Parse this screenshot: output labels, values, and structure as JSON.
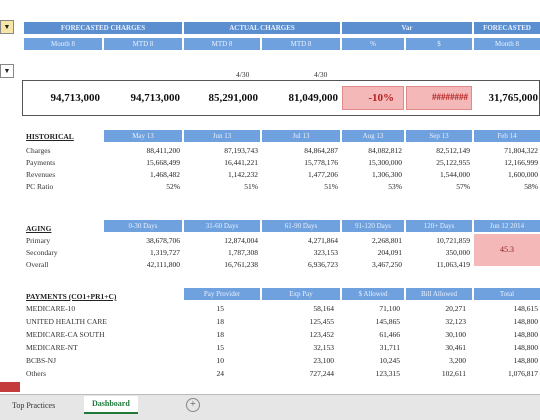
{
  "top": {
    "groups": [
      "FORECASTED CHARGES",
      "ACTUAL CHARGES",
      "Var",
      "FORECASTED"
    ],
    "subheaders": [
      "Month 8",
      "MTD 8",
      "MTD 8",
      "MTD 8",
      "%",
      "$",
      "Month 8"
    ],
    "dates": [
      "4/30",
      "4/30"
    ],
    "values": [
      "94,713,000",
      "94,713,000",
      "85,291,000",
      "81,049,000",
      "-10%",
      "########",
      "31,765,000"
    ]
  },
  "historical": {
    "title": "HISTORICAL",
    "headers": [
      "May 13",
      "Jun 13",
      "Jul 13",
      "Aug 13",
      "Sep 13",
      "Feb 14"
    ],
    "rows": [
      {
        "label": "Charges",
        "values": [
          "88,411,200",
          "87,193,743",
          "84,864,287",
          "84,082,812",
          "82,512,149",
          "71,804,322"
        ]
      },
      {
        "label": "Payments",
        "values": [
          "15,668,499",
          "16,441,221",
          "15,778,176",
          "15,300,000",
          "25,122,955",
          "12,166,999"
        ]
      },
      {
        "label": "Revenues",
        "values": [
          "1,468,482",
          "1,142,232",
          "1,477,206",
          "1,306,300",
          "1,544,000",
          "1,600,000"
        ]
      },
      {
        "label": "PC Ratio",
        "values": [
          "52%",
          "51%",
          "51%",
          "53%",
          "57%",
          "58%"
        ]
      }
    ]
  },
  "aging": {
    "title": "AGING",
    "headers": [
      "0-30 Days",
      "31-60 Days",
      "61-90 Days",
      "91-120 Days",
      "120+ Days",
      "Jun 12 2014"
    ],
    "rows": [
      {
        "label": "Primary",
        "values": [
          "38,678,706",
          "12,874,004",
          "4,271,864",
          "2,268,801",
          "10,721,859",
          ""
        ]
      },
      {
        "label": "Secondary",
        "values": [
          "1,319,727",
          "1,787,308",
          "323,153",
          "204,091",
          "350,000",
          ""
        ]
      },
      {
        "label": "Overall",
        "values": [
          "42,111,800",
          "16,761,238",
          "6,936,723",
          "3,467,250",
          "11,063,419",
          ""
        ]
      }
    ],
    "highlight": "45.3"
  },
  "payments": {
    "title": "PAYMENTS (CO1+PR1+C)",
    "headers": [
      "Pay Provider",
      "Exp Pay",
      "$ Allowed",
      "Bill Allowed",
      "Total"
    ],
    "rows": [
      {
        "label": "MEDICARE-10",
        "values": [
          "15",
          "58,164",
          "71,100",
          "20,271",
          "148,615"
        ]
      },
      {
        "label": "UNITED HEALTH CARE",
        "values": [
          "18",
          "125,455",
          "145,865",
          "32,123",
          "148,800"
        ]
      },
      {
        "label": "MEDICARE-CA SOUTH",
        "values": [
          "18",
          "123,452",
          "61,466",
          "30,100",
          "148,800"
        ]
      },
      {
        "label": "MEDICARE-NT",
        "values": [
          "15",
          "32,153",
          "31,711",
          "30,461",
          "148,800"
        ]
      },
      {
        "label": "BCBS-NJ",
        "values": [
          "10",
          "23,100",
          "10,245",
          "3,200",
          "148,800"
        ]
      },
      {
        "label": "Others",
        "values": [
          "24",
          "727,244",
          "123,315",
          "102,611",
          "1,076,817"
        ]
      }
    ]
  },
  "tabs": [
    "Top Practices",
    "Dashboard"
  ],
  "add_tab": "+"
}
